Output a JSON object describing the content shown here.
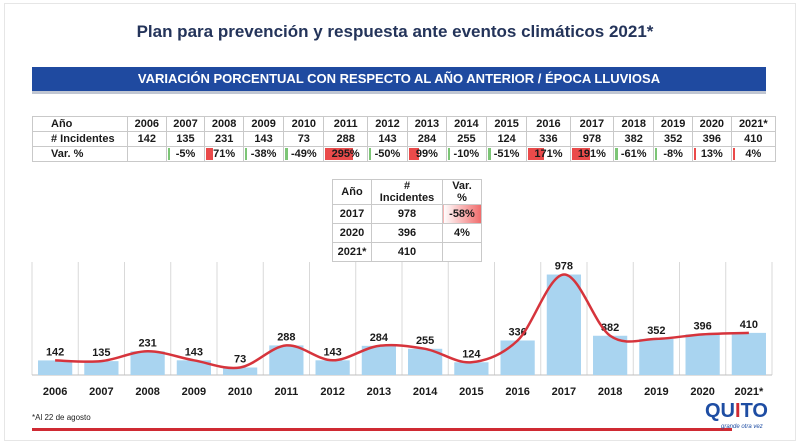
{
  "title": "Plan para prevención y respuesta ante eventos climáticos 2021*",
  "banner": "VARIACIÓN PORCENTUAL CON RESPECTO AL AÑO ANTERIOR / ÉPOCA LLUVIOSA",
  "table_main": {
    "row_labels": [
      "Año",
      "# Incidentes",
      "Var. %"
    ],
    "years": [
      "2006",
      "2007",
      "2008",
      "2009",
      "2010",
      "2011",
      "2012",
      "2013",
      "2014",
      "2015",
      "2016",
      "2017",
      "2018",
      "2019",
      "2020",
      "2021*"
    ],
    "incidents": [
      "142",
      "135",
      "231",
      "143",
      "73",
      "288",
      "143",
      "284",
      "255",
      "124",
      "336",
      "978",
      "382",
      "352",
      "396",
      "410"
    ],
    "var": [
      "",
      "-5%",
      "71%",
      "-38%",
      "-49%",
      "295%",
      "-50%",
      "99%",
      "-10%",
      "-51%",
      "171%",
      "191%",
      "-61%",
      "-8%",
      "13%",
      "4%"
    ],
    "var_values": [
      null,
      -5,
      71,
      -38,
      -49,
      295,
      -50,
      99,
      -10,
      -51,
      171,
      191,
      -61,
      -8,
      13,
      4
    ]
  },
  "table_summary": {
    "headers": [
      "Año",
      "# Incidentes",
      "Var. %"
    ],
    "rows": [
      {
        "year": "2017",
        "incidents": "978",
        "var": "-58%"
      },
      {
        "year": "2020",
        "incidents": "396",
        "var": "4%"
      },
      {
        "year": "2021*",
        "incidents": "410",
        "var": ""
      }
    ]
  },
  "chart_data": {
    "type": "bar",
    "categories": [
      "2006",
      "2007",
      "2008",
      "2009",
      "2010",
      "2011",
      "2012",
      "2013",
      "2014",
      "2015",
      "2016",
      "2017",
      "2018",
      "2019",
      "2020",
      "2021*"
    ],
    "values": [
      142,
      135,
      231,
      143,
      73,
      288,
      143,
      284,
      255,
      124,
      336,
      978,
      382,
      352,
      396,
      410
    ],
    "overlay_line": true,
    "title": "",
    "xlabel": "",
    "ylabel": "",
    "ylim": [
      0,
      1100
    ],
    "grid": "vertical",
    "colors": {
      "bar": "#a9d4f0",
      "line": "#d6343c",
      "grid": "#d9d9d9"
    }
  },
  "footnote": "*Al 22 de agosto",
  "logo": {
    "text_a": "QU",
    "text_b": "I",
    "text_c": "TO",
    "tagline": "grande otra vez"
  },
  "colors": {
    "banner": "#1f4aa0",
    "positive": "#ea4a4a",
    "negative": "#7cc576",
    "footer_line": "#cf2a33"
  }
}
